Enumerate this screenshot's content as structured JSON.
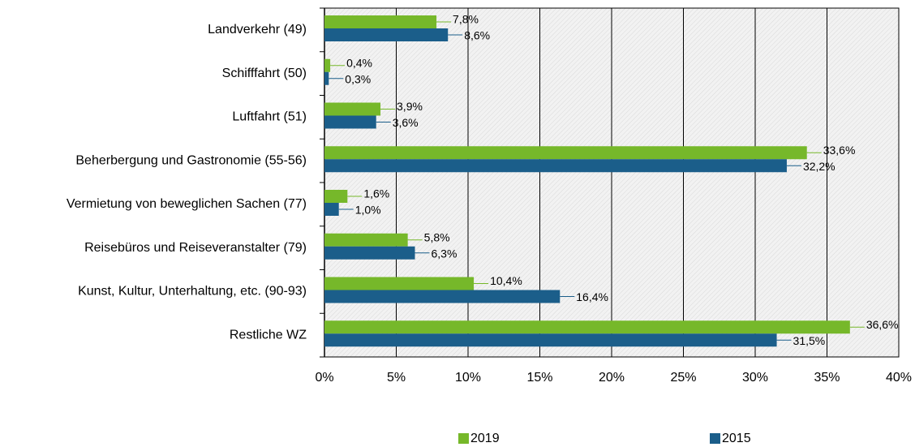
{
  "chart_data": {
    "type": "bar",
    "orientation": "horizontal",
    "categories": [
      "Landverkehr (49)",
      "Schifffahrt (50)",
      "Luftfahrt (51)",
      "Beherbergung und Gastronomie (55-56)",
      "Vermietung von beweglichen Sachen (77)",
      "Reisebüros und Reiseveranstalter (79)",
      "Kunst, Kultur, Unterhaltung, etc. (90-93)",
      "Restliche WZ"
    ],
    "series": [
      {
        "name": "2019",
        "color": "#76b82a",
        "values": [
          7.8,
          0.4,
          3.9,
          33.6,
          1.6,
          5.8,
          10.4,
          36.6
        ],
        "value_labels": [
          "7,8%",
          "0,4%",
          "3,9%",
          "33,6%",
          "1,6%",
          "5,8%",
          "10,4%",
          "36,6%"
        ]
      },
      {
        "name": "2015",
        "color": "#1b5e8a",
        "values": [
          8.6,
          0.3,
          3.6,
          32.2,
          1.0,
          6.3,
          16.4,
          31.5
        ],
        "value_labels": [
          "8,6%",
          "0,3%",
          "3,6%",
          "32,2%",
          "1,0%",
          "6,3%",
          "16,4%",
          "31,5%"
        ]
      }
    ],
    "xlim": [
      0,
      40
    ],
    "xticks": [
      {
        "value": 0,
        "label": "0%"
      },
      {
        "value": 5,
        "label": "5%"
      },
      {
        "value": 10,
        "label": "10%"
      },
      {
        "value": 15,
        "label": "15%"
      },
      {
        "value": 20,
        "label": "20%"
      },
      {
        "value": 25,
        "label": "25%"
      },
      {
        "value": 30,
        "label": "30%"
      },
      {
        "value": 35,
        "label": "35%"
      },
      {
        "value": 40,
        "label": "40%"
      }
    ],
    "grid": true,
    "legend": "bottom"
  }
}
